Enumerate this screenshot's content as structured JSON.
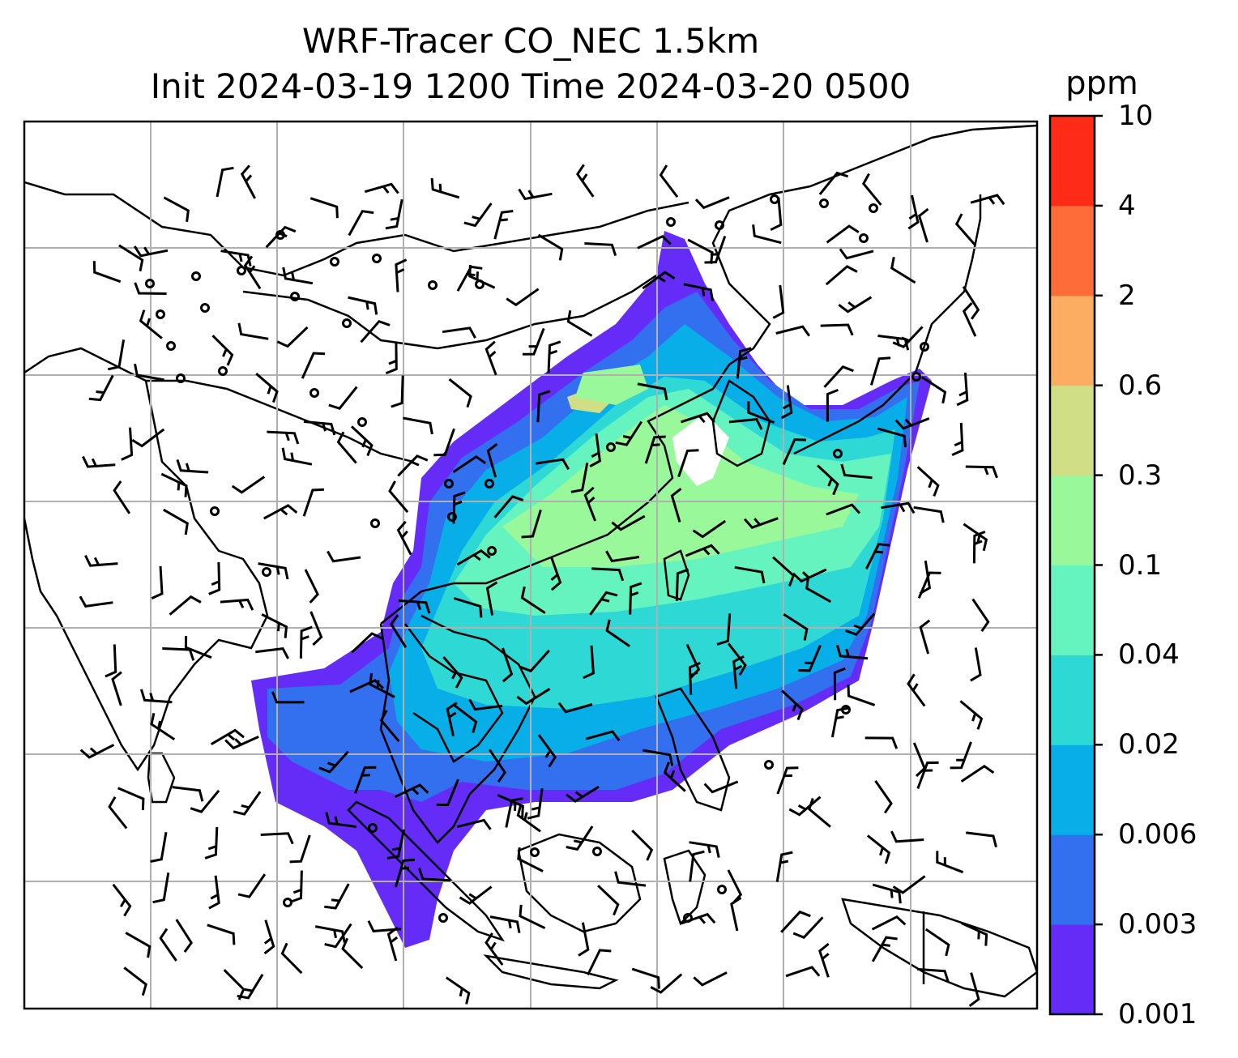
{
  "title": {
    "line1": "WRF-Tracer CO_NEC 1.5km",
    "line2": "Init 2024-03-19 1200 Time 2024-03-20 0500"
  },
  "colorbar": {
    "unit": "ppm",
    "ticks": [
      "0.001",
      "0.003",
      "0.006",
      "0.02",
      "0.04",
      "0.1",
      "0.3",
      "0.6",
      "2",
      "4",
      "10"
    ],
    "colors": [
      "#652cf8",
      "#3370f0",
      "#08aee8",
      "#2ed9d5",
      "#65f4c0",
      "#98f89a",
      "#d0df86",
      "#fdad62",
      "#fe6c39",
      "#fe2b16"
    ]
  },
  "map": {
    "gridlines": true,
    "overlays": [
      "coastlines",
      "country-borders",
      "wind-barbs",
      "calm-circles"
    ]
  }
}
